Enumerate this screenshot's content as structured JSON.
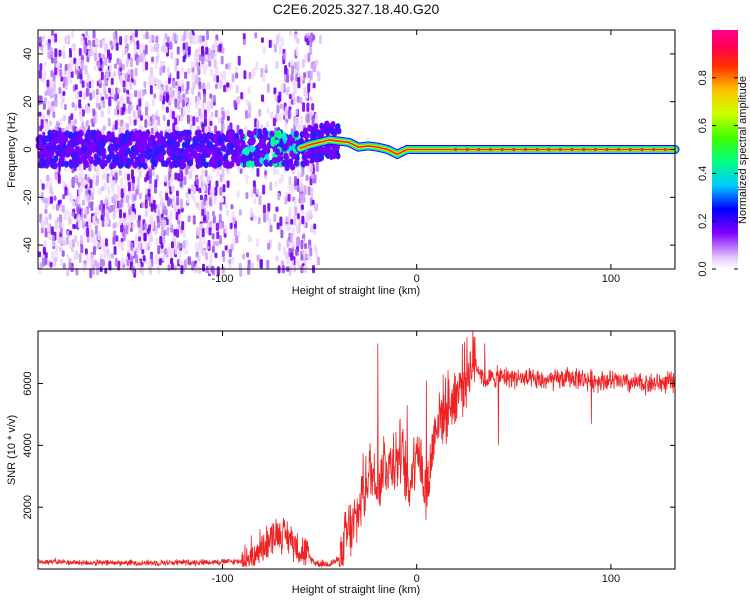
{
  "chart_data": [
    {
      "type": "heatmap",
      "title": "C2E6.2025.327.18.40.G20",
      "xlabel": "Height of straight line (km)",
      "ylabel": "Frequency (Hz)",
      "xlim": [
        -195,
        133
      ],
      "ylim": [
        -50,
        50
      ],
      "xticks": [
        -100,
        0,
        100
      ],
      "yticks": [
        -40,
        -20,
        0,
        20,
        40
      ],
      "colorbar": {
        "label": "Normalized spectral amplitude",
        "range": [
          0.0,
          1.0
        ],
        "ticks": [
          "0.0",
          "0.2",
          "0.4",
          "0.6",
          "0.8"
        ],
        "colors": [
          "#ffffff",
          "#d8a8f8",
          "#8000ff",
          "#0000ff",
          "#00ffff",
          "#00ff00",
          "#ffff00",
          "#ff8000",
          "#ff0000",
          "#ff0090"
        ]
      },
      "ridge": {
        "description_points_x": [
          -195,
          -100,
          -75,
          -65,
          -55,
          -50,
          -45,
          -40,
          -35,
          -30,
          -25,
          -20,
          -15,
          -10,
          -5,
          0,
          50,
          133
        ],
        "description_points_freq": [
          0,
          0,
          1,
          -1,
          2,
          3,
          4,
          3.5,
          3,
          1,
          1.5,
          1,
          0,
          -2,
          0,
          0,
          0,
          0
        ]
      }
    },
    {
      "type": "line",
      "title": "",
      "xlabel": "Height of straight line (km)",
      "ylabel": "SNR (10 * v/v)",
      "xlim": [
        -195,
        133
      ],
      "ylim": [
        0,
        7700
      ],
      "xticks": [
        -100,
        0,
        100
      ],
      "yticks": [
        2000,
        4000,
        6000
      ],
      "color": "#ee2222",
      "x": [
        -195,
        -170,
        -140,
        -110,
        -90,
        -80,
        -72,
        -65,
        -58,
        -52,
        -46,
        -40,
        -36,
        -32,
        -28,
        -24,
        -20,
        -16,
        -12,
        -8,
        -4,
        0,
        5,
        10,
        15,
        20,
        25,
        30,
        35,
        40,
        50,
        60,
        70,
        80,
        90,
        100,
        110,
        120,
        133
      ],
      "values": [
        250,
        200,
        200,
        220,
        250,
        700,
        1200,
        1000,
        500,
        200,
        150,
        300,
        1100,
        1400,
        2400,
        3200,
        2800,
        3400,
        3400,
        3800,
        2500,
        4200,
        2300,
        4800,
        5200,
        5600,
        6300,
        6700,
        6100,
        6200,
        6200,
        6100,
        6100,
        6200,
        6100,
        6100,
        6000,
        6000,
        6050
      ],
      "peaks": [
        {
          "x": -35,
          "y": 1900
        },
        {
          "x": -28,
          "y": 3000
        },
        {
          "x": -20,
          "y": 7300
        },
        {
          "x": -17,
          "y": 4300
        },
        {
          "x": -12,
          "y": 4400
        },
        {
          "x": -5,
          "y": 5300
        },
        {
          "x": 5,
          "y": 6100
        },
        {
          "x": 30,
          "y": 7500
        },
        {
          "x": 35,
          "y": 7300
        },
        {
          "x": 42,
          "y": 4000
        },
        {
          "x": 90,
          "y": 4700
        }
      ]
    }
  ]
}
